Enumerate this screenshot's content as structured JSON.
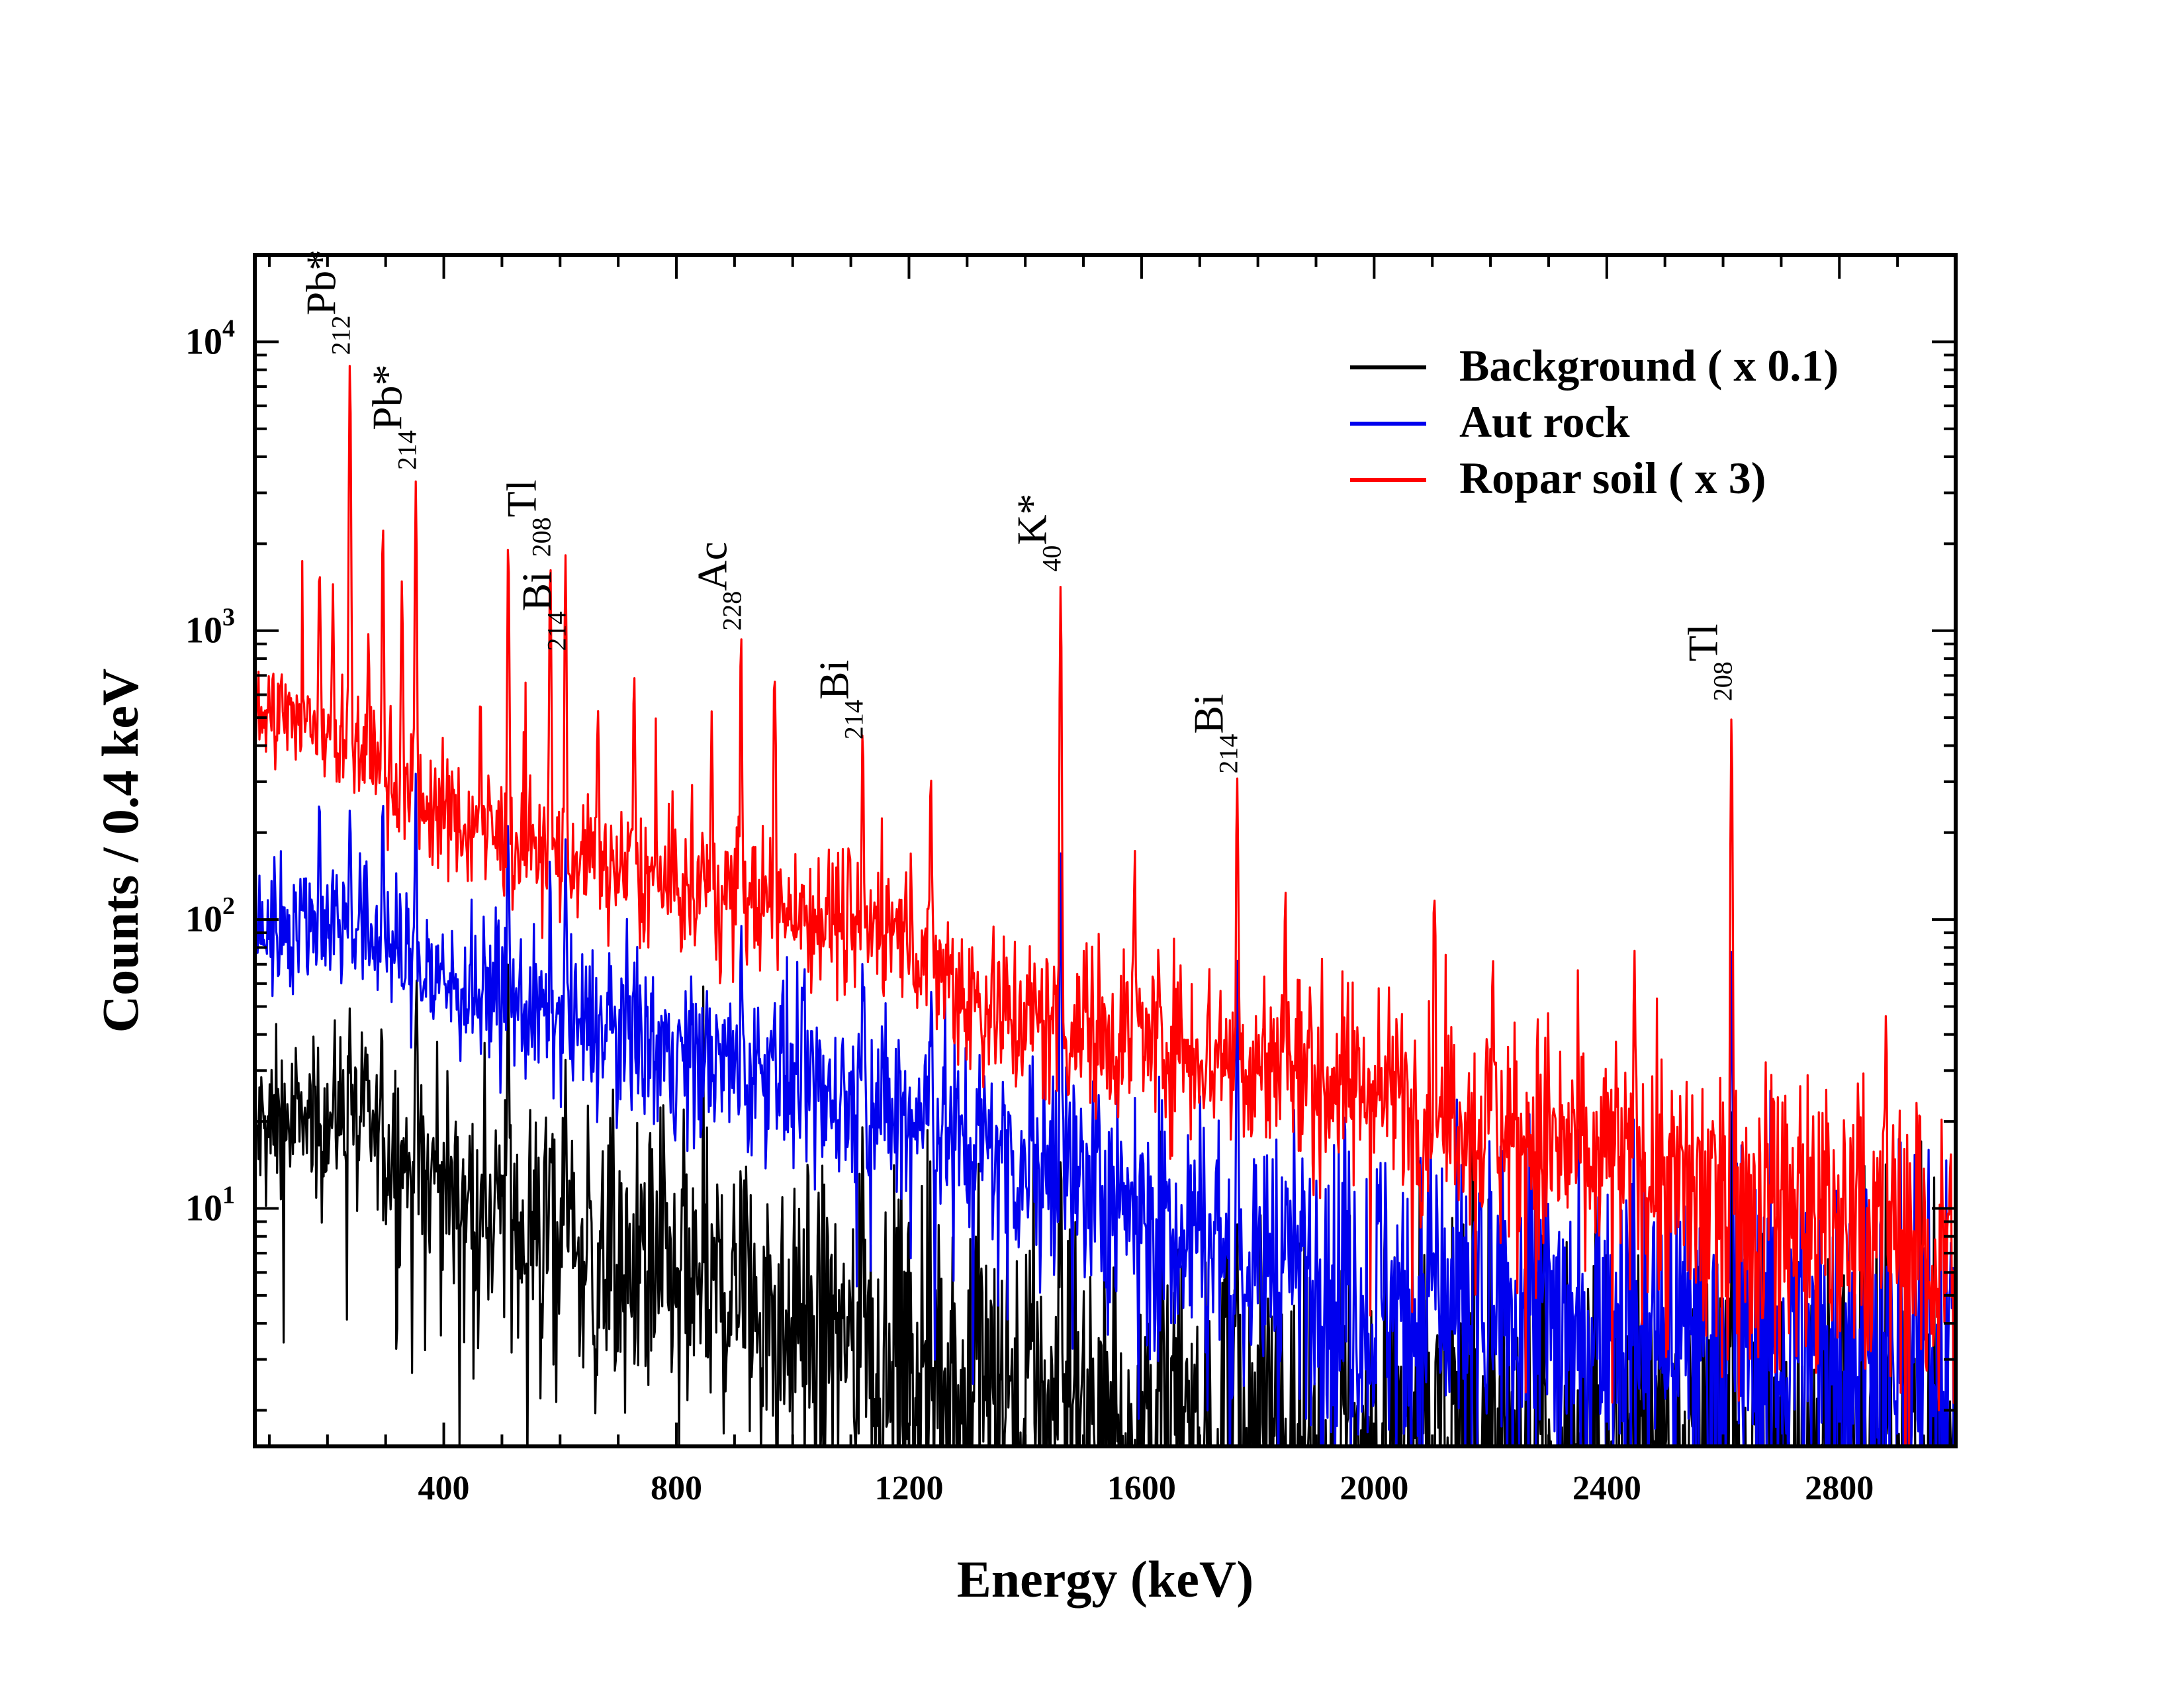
{
  "chart_data": {
    "type": "line",
    "title": "",
    "xlabel": "Energy (keV)",
    "ylabel": "Counts / 0.4 keV",
    "yscale": "log",
    "xlim": [
      75,
      3000
    ],
    "ylim": [
      1.5,
      20000
    ],
    "x_ticks": [
      400,
      800,
      1200,
      1600,
      2000,
      2400,
      2800
    ],
    "x_tick_labels": [
      "400",
      "800",
      "1200",
      "1600",
      "2000",
      "2400",
      "2800"
    ],
    "y_ticks": [
      {
        "base": "10",
        "exp": "1",
        "value": 10
      },
      {
        "base": "10",
        "exp": "2",
        "value": 100
      },
      {
        "base": "10",
        "exp": "3",
        "value": 1000
      },
      {
        "base": "10",
        "exp": "4",
        "value": 10000
      }
    ],
    "legend_position": "top-right",
    "series": [
      {
        "name": "Background ( x 0.1)",
        "color": "#000000",
        "continuum": [
          [
            75,
            18
          ],
          [
            150,
            20
          ],
          [
            230,
            21
          ],
          [
            300,
            17
          ],
          [
            350,
            14
          ],
          [
            450,
            11
          ],
          [
            600,
            8.5
          ],
          [
            800,
            6
          ],
          [
            1000,
            4.5
          ],
          [
            1200,
            3.2
          ],
          [
            1400,
            2.5
          ],
          [
            1600,
            2.0
          ],
          [
            1800,
            1.7
          ],
          [
            2000,
            1.55
          ],
          [
            2200,
            1.5
          ],
          [
            2400,
            1.45
          ],
          [
            2600,
            1.4
          ],
          [
            3000,
            1.3
          ]
        ],
        "noise": 0.09,
        "floor": 1.5,
        "peaks": [
          [
            238.6,
            30
          ],
          [
            351.9,
            32
          ],
          [
            510.8,
            45
          ],
          [
            583.2,
            13
          ],
          [
            609.3,
            19
          ],
          [
            911.2,
            10
          ],
          [
            1120.3,
            17
          ],
          [
            1460.8,
            12
          ],
          [
            1764.5,
            8
          ],
          [
            2614.5,
            5
          ]
        ]
      },
      {
        "name": "Aut rock",
        "color": "#0000ee",
        "continuum": [
          [
            75,
            92
          ],
          [
            150,
            100
          ],
          [
            230,
            100
          ],
          [
            300,
            82
          ],
          [
            350,
            68
          ],
          [
            450,
            55
          ],
          [
            600,
            45
          ],
          [
            800,
            35
          ],
          [
            1000,
            27
          ],
          [
            1200,
            20
          ],
          [
            1400,
            15
          ],
          [
            1600,
            11
          ],
          [
            1800,
            7
          ],
          [
            2000,
            5.5
          ],
          [
            2200,
            4.8
          ],
          [
            2400,
            4.3
          ],
          [
            2600,
            3.8
          ],
          [
            3000,
            3.3
          ]
        ],
        "noise": 0.1,
        "floor": 1.5,
        "peaks": [
          [
            186.2,
            150
          ],
          [
            238.6,
            155
          ],
          [
            295.2,
            200
          ],
          [
            351.9,
            240
          ],
          [
            510.8,
            160
          ],
          [
            583.2,
            70
          ],
          [
            609.3,
            135
          ],
          [
            727.3,
            45
          ],
          [
            911.2,
            55
          ],
          [
            968.9,
            40
          ],
          [
            1120.3,
            60
          ],
          [
            1238.1,
            45
          ],
          [
            1460.8,
            160
          ],
          [
            1764.5,
            55
          ],
          [
            2614.5,
            70
          ]
        ]
      },
      {
        "name": "Ropar soil ( x 3)",
        "color": "#ff0000",
        "continuum": [
          [
            75,
            520
          ],
          [
            150,
            500
          ],
          [
            230,
            420
          ],
          [
            300,
            320
          ],
          [
            350,
            265
          ],
          [
            450,
            205
          ],
          [
            600,
            165
          ],
          [
            800,
            130
          ],
          [
            1000,
            110
          ],
          [
            1200,
            90
          ],
          [
            1300,
            55
          ],
          [
            1400,
            45
          ],
          [
            1600,
            40
          ],
          [
            1800,
            32
          ],
          [
            2000,
            25
          ],
          [
            2200,
            20
          ],
          [
            2400,
            15
          ],
          [
            2600,
            11
          ],
          [
            2800,
            9
          ],
          [
            3000,
            8
          ]
        ],
        "noise": 0.11,
        "floor": 1.5,
        "peaks": [
          [
            186.2,
            1200
          ],
          [
            209.3,
            1000
          ],
          [
            238.6,
            8000
          ],
          [
            270.2,
            700
          ],
          [
            295.2,
            2000
          ],
          [
            328.0,
            1300
          ],
          [
            351.9,
            3000
          ],
          [
            463.0,
            450
          ],
          [
            510.8,
            1900
          ],
          [
            583.2,
            1600
          ],
          [
            609.3,
            1650
          ],
          [
            665.4,
            400
          ],
          [
            727.3,
            600
          ],
          [
            860.6,
            350
          ],
          [
            911.2,
            880
          ],
          [
            968.9,
            620
          ],
          [
            1120.3,
            350
          ],
          [
            1238.1,
            200
          ],
          [
            1460.8,
            1400
          ],
          [
            1588.2,
            120
          ],
          [
            1764.5,
            280
          ],
          [
            1847.4,
            100
          ],
          [
            2103.5,
            100
          ],
          [
            2204.1,
            60
          ],
          [
            2447.9,
            65
          ],
          [
            2614.5,
            500
          ],
          [
            2880,
            40
          ]
        ]
      }
    ],
    "annotations": [
      {
        "sup": "212",
        "text": "Pb*",
        "energy": 238.6,
        "y": 9000
      },
      {
        "sup": "214",
        "text": "Pb*",
        "energy": 351.9,
        "y": 3600
      },
      {
        "sup": "208",
        "text": "Tl",
        "energy": 583.2,
        "y": 1800
      },
      {
        "sup": "214",
        "text": "Bi",
        "energy": 609.3,
        "y": 850
      },
      {
        "sup": "228",
        "text": "Ac",
        "energy": 911.2,
        "y": 1000
      },
      {
        "sup": "214",
        "text": "Bi",
        "energy": 1120.3,
        "y": 420
      },
      {
        "sup": "40",
        "text": "K*",
        "energy": 1460.8,
        "y": 1600
      },
      {
        "sup": "214",
        "text": "Bi",
        "energy": 1764.5,
        "y": 320
      },
      {
        "sup": "208",
        "text": "Tl",
        "energy": 2614.5,
        "y": 570
      }
    ]
  }
}
